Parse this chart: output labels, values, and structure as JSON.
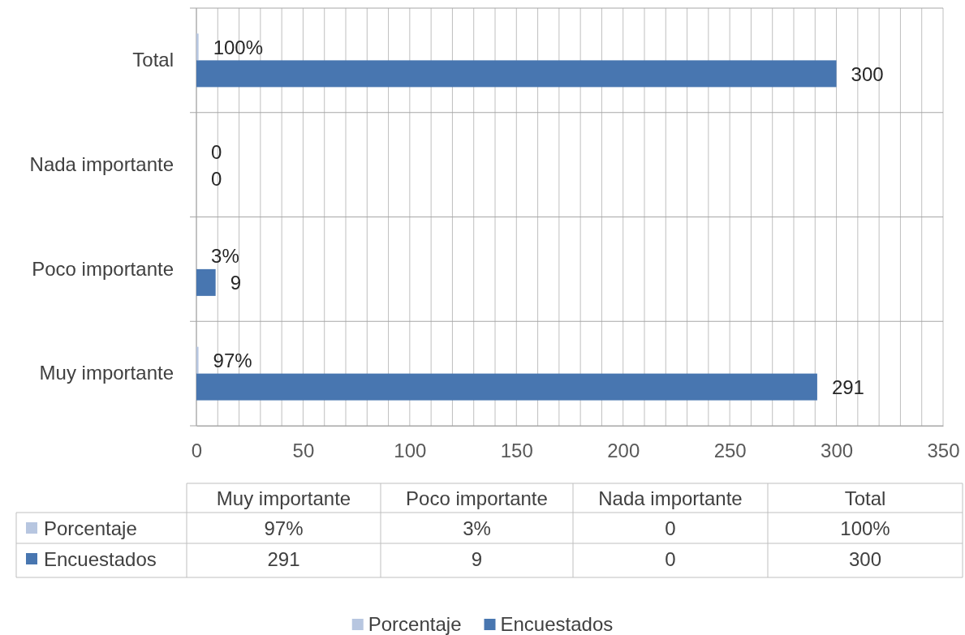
{
  "chart_data": {
    "type": "bar",
    "orientation": "horizontal",
    "categories": [
      "Total",
      "Nada importante",
      "Poco importante",
      "Muy importante"
    ],
    "series": [
      {
        "name": "Porcentaje",
        "color": "#b7c6e0",
        "values": [
          1,
          0,
          0.03,
          0.97
        ],
        "value_labels": [
          "100%",
          "0",
          "3%",
          "97%"
        ]
      },
      {
        "name": "Encuestados",
        "color": "#4876b0",
        "values": [
          300,
          0,
          9,
          291
        ],
        "value_labels": [
          "300",
          "0",
          "9",
          "291"
        ]
      }
    ],
    "xlim": [
      0,
      350
    ],
    "xticks": [
      0,
      {
        "value": 10,
        "label": null
      },
      {
        "value": 20,
        "label": null
      },
      {
        "value": 30,
        "label": null
      },
      {
        "value": 40,
        "label": null
      },
      50,
      {
        "value": 60,
        "label": null
      },
      {
        "value": 70,
        "label": null
      },
      {
        "value": 80,
        "label": null
      },
      {
        "value": 90,
        "label": null
      },
      100,
      {
        "value": 110,
        "label": null
      },
      {
        "value": 120,
        "label": null
      },
      {
        "value": 130,
        "label": null
      },
      {
        "value": 140,
        "label": null
      },
      150,
      {
        "value": 160,
        "label": null
      },
      {
        "value": 170,
        "label": null
      },
      {
        "value": 180,
        "label": null
      },
      {
        "value": 190,
        "label": null
      },
      200,
      {
        "value": 210,
        "label": null
      },
      {
        "value": 220,
        "label": null
      },
      {
        "value": 230,
        "label": null
      },
      {
        "value": 240,
        "label": null
      },
      250,
      {
        "value": 260,
        "label": null
      },
      {
        "value": 270,
        "label": null
      },
      {
        "value": 280,
        "label": null
      },
      {
        "value": 290,
        "label": null
      },
      300,
      {
        "value": 310,
        "label": null
      },
      {
        "value": 320,
        "label": null
      },
      {
        "value": 330,
        "label": null
      },
      {
        "value": 340,
        "label": null
      },
      350
    ],
    "grid": "x",
    "legend": "bottom"
  }
}
